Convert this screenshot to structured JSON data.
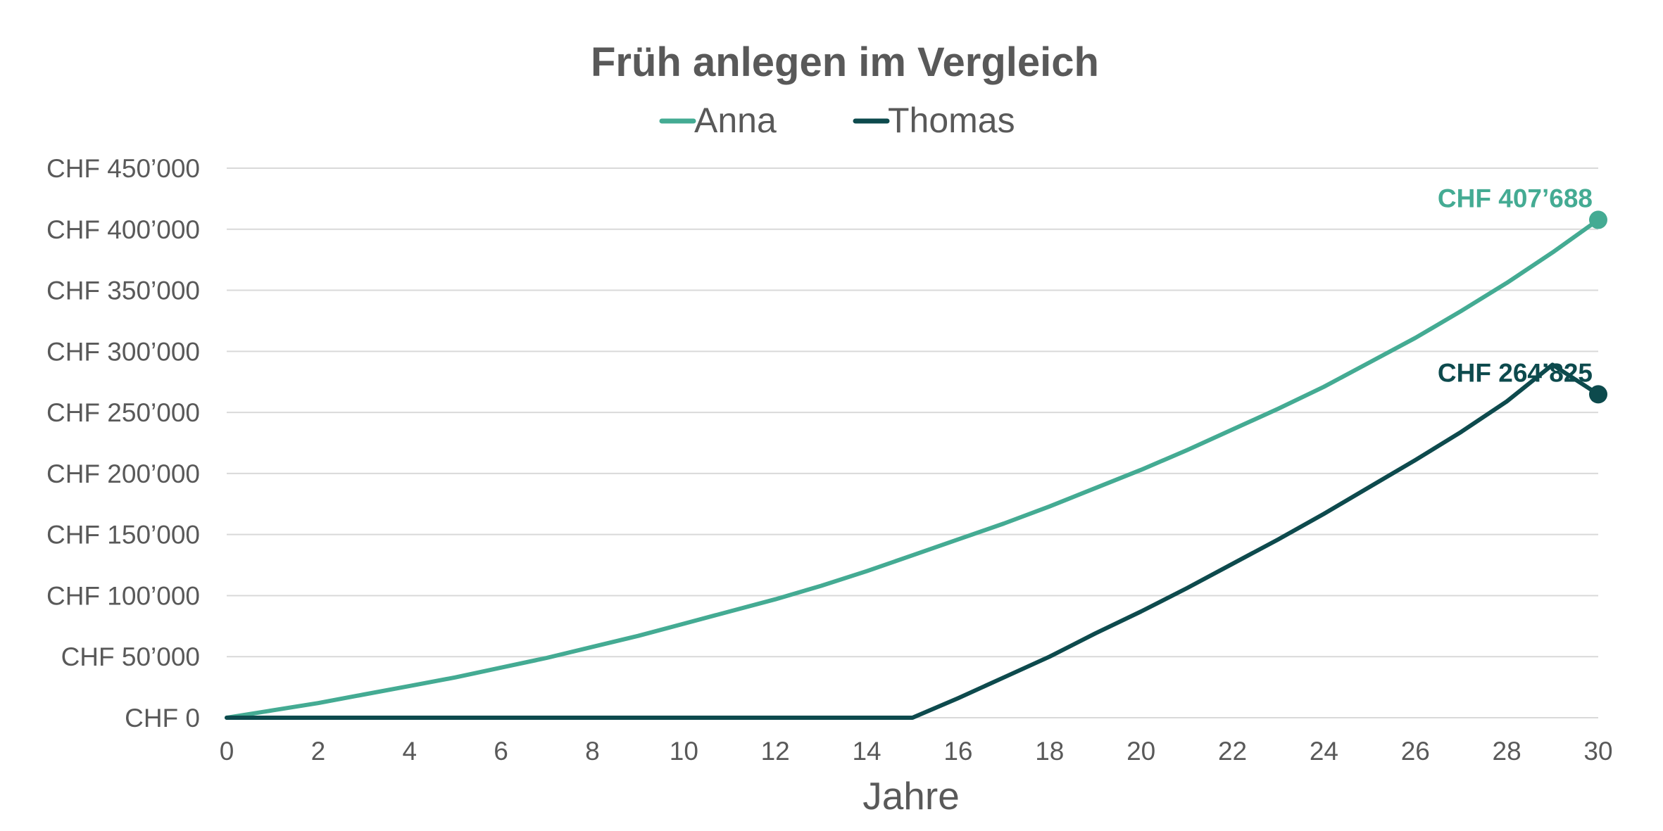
{
  "chart_data": {
    "type": "line",
    "title": "Früh anlegen im Vergleich",
    "xlabel": "Jahre",
    "ylabel": "",
    "xlim": [
      0,
      30
    ],
    "ylim": [
      0,
      450000
    ],
    "x_ticks": [
      "0",
      "2",
      "4",
      "6",
      "8",
      "10",
      "12",
      "14",
      "16",
      "18",
      "20",
      "22",
      "24",
      "26",
      "28",
      "30"
    ],
    "y_ticks": [
      "CHF 0",
      "CHF 50’000",
      "CHF 100’000",
      "CHF 150’000",
      "CHF 200’000",
      "CHF 250’000",
      "CHF 300’000",
      "CHF 350’000",
      "CHF 400’000",
      "CHF 450’000"
    ],
    "grid": true,
    "legend": "top",
    "x": [
      0,
      1,
      2,
      3,
      4,
      5,
      6,
      7,
      8,
      9,
      10,
      11,
      12,
      13,
      14,
      15,
      16,
      17,
      18,
      19,
      20,
      21,
      22,
      23,
      24,
      25,
      26,
      27,
      28,
      29,
      30
    ],
    "series": [
      {
        "name": "Anna",
        "color": "#44ab93",
        "values": [
          0,
          6000,
          12000,
          19000,
          26000,
          33000,
          41000,
          49000,
          58000,
          67000,
          77000,
          87000,
          97000,
          108000,
          120000,
          133000,
          146000,
          159000,
          173000,
          188000,
          203000,
          219000,
          236000,
          253000,
          271000,
          291000,
          311000,
          333000,
          356000,
          381000,
          407688
        ],
        "end_label": "CHF 407’688"
      },
      {
        "name": "Thomas",
        "color": "#0d4a4d",
        "values": [
          0,
          0,
          0,
          0,
          0,
          0,
          0,
          0,
          0,
          0,
          0,
          0,
          0,
          0,
          0,
          0,
          16000,
          33000,
          50000,
          69000,
          87000,
          106000,
          126000,
          146000,
          167000,
          189000,
          211000,
          234000,
          259000,
          289000,
          264825
        ],
        "end_label": "CHF 264’825"
      }
    ]
  }
}
